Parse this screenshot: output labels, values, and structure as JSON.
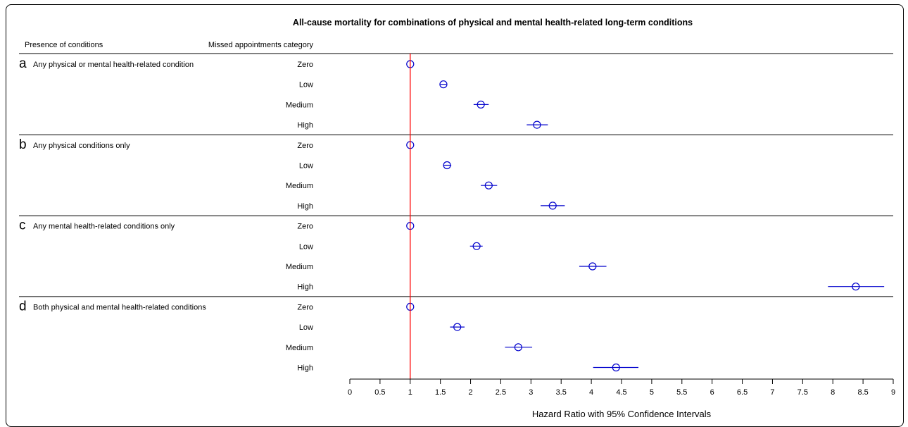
{
  "chart_data": {
    "type": "forest",
    "title": "All-cause mortality for combinations of physical and mental health-related long-term conditions",
    "column_headers": {
      "presence": "Presence of conditions",
      "category": "Missed appointments category"
    },
    "xlabel": "Hazard Ratio with 95% Confidence Intervals",
    "xlim": [
      0,
      9
    ],
    "xticks": [
      "0",
      "0.5",
      "1",
      "1.5",
      "2",
      "2.5",
      "3",
      "3.5",
      "4",
      "4.5",
      "5",
      "5.5",
      "6",
      "6.5",
      "7",
      "7.5",
      "8",
      "8.5",
      "9"
    ],
    "reference_line": 1,
    "colors": {
      "reference_line": "#ff0000",
      "marker": "#0000cc",
      "axis": "#000000"
    },
    "groups": [
      {
        "letter": "a",
        "label": "Any physical or mental health-related condition",
        "rows": [
          {
            "category": "Zero",
            "hr": 1.0,
            "lo": 1.0,
            "hi": 1.0
          },
          {
            "category": "Low",
            "hr": 1.55,
            "lo": 1.5,
            "hi": 1.6
          },
          {
            "category": "Medium",
            "hr": 2.17,
            "lo": 2.05,
            "hi": 2.3
          },
          {
            "category": "High",
            "hr": 3.1,
            "lo": 2.93,
            "hi": 3.28
          }
        ]
      },
      {
        "letter": "b",
        "label": "Any physical conditions only",
        "rows": [
          {
            "category": "Zero",
            "hr": 1.0,
            "lo": 1.0,
            "hi": 1.0
          },
          {
            "category": "Low",
            "hr": 1.61,
            "lo": 1.55,
            "hi": 1.68
          },
          {
            "category": "Medium",
            "hr": 2.3,
            "lo": 2.17,
            "hi": 2.44
          },
          {
            "category": "High",
            "hr": 3.36,
            "lo": 3.16,
            "hi": 3.56
          }
        ]
      },
      {
        "letter": "c",
        "label": "Any mental health-related conditions only",
        "rows": [
          {
            "category": "Zero",
            "hr": 1.0,
            "lo": 1.0,
            "hi": 1.0
          },
          {
            "category": "Low",
            "hr": 2.1,
            "lo": 1.99,
            "hi": 2.2
          },
          {
            "category": "Medium",
            "hr": 4.02,
            "lo": 3.8,
            "hi": 4.25
          },
          {
            "category": "High",
            "hr": 8.38,
            "lo": 7.92,
            "hi": 8.85
          }
        ]
      },
      {
        "letter": "d",
        "label": "Both physical and mental health-related conditions",
        "rows": [
          {
            "category": "Zero",
            "hr": 1.0,
            "lo": 1.0,
            "hi": 1.0
          },
          {
            "category": "Low",
            "hr": 1.78,
            "lo": 1.66,
            "hi": 1.9
          },
          {
            "category": "Medium",
            "hr": 2.79,
            "lo": 2.57,
            "hi": 3.02
          },
          {
            "category": "High",
            "hr": 4.41,
            "lo": 4.03,
            "hi": 4.78
          }
        ]
      }
    ]
  }
}
